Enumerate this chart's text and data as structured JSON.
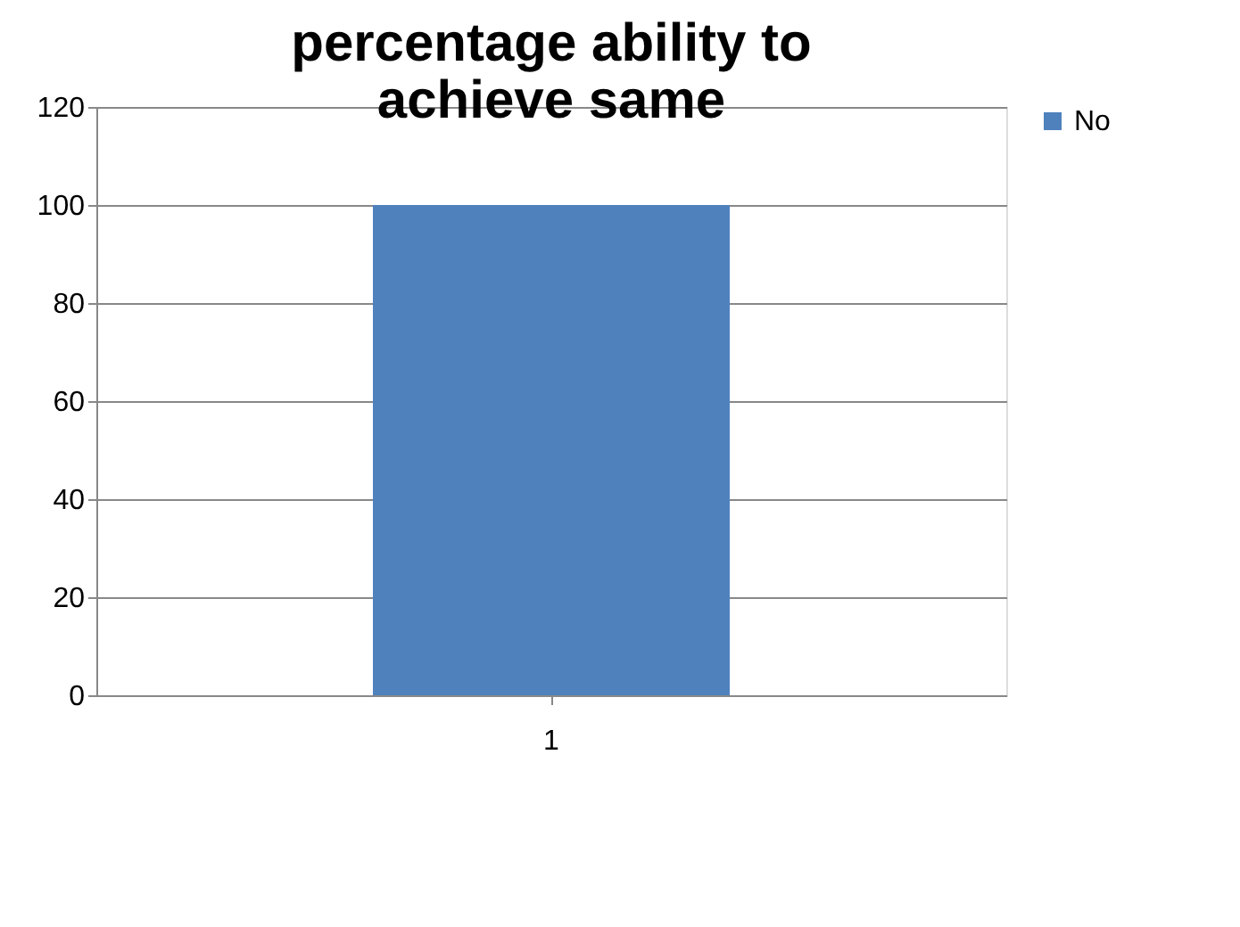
{
  "chart_data": {
    "type": "bar",
    "title": "percentage ability to achieve same",
    "categories": [
      "1"
    ],
    "series": [
      {
        "name": "No",
        "color": "#4f81bd",
        "values": [
          100
        ]
      }
    ],
    "ylim": [
      0,
      120
    ],
    "yticks": [
      0,
      20,
      40,
      60,
      80,
      100,
      120
    ],
    "grid": "y",
    "legend": "right"
  }
}
